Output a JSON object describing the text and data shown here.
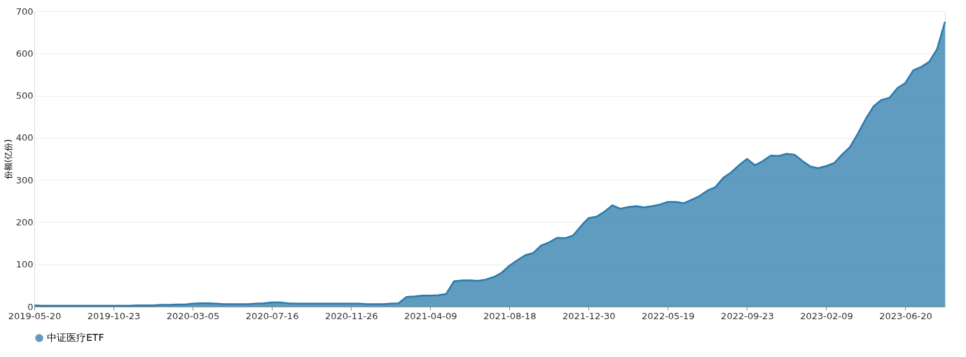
{
  "chart_data": {
    "type": "area",
    "ylabel": "份额(亿份)",
    "categories": [
      "2019-05-20",
      null,
      null,
      null,
      null,
      null,
      null,
      null,
      null,
      null,
      "2019-10-23",
      null,
      null,
      null,
      null,
      null,
      null,
      null,
      null,
      null,
      "2020-03-05",
      null,
      null,
      null,
      null,
      null,
      null,
      null,
      null,
      null,
      "2020-07-16",
      null,
      null,
      null,
      null,
      null,
      null,
      null,
      null,
      null,
      "2020-11-26",
      null,
      null,
      null,
      null,
      null,
      null,
      null,
      null,
      null,
      "2021-04-09",
      null,
      null,
      null,
      null,
      null,
      null,
      null,
      null,
      null,
      "2021-08-18",
      null,
      null,
      null,
      null,
      null,
      null,
      null,
      null,
      null,
      "2021-12-30",
      null,
      null,
      null,
      null,
      null,
      null,
      null,
      null,
      null,
      "2022-05-19",
      null,
      null,
      null,
      null,
      null,
      null,
      null,
      null,
      null,
      "2022-09-23",
      null,
      null,
      null,
      null,
      null,
      null,
      null,
      null,
      null,
      "2023-02-09",
      null,
      null,
      null,
      null,
      null,
      null,
      null,
      null,
      null,
      "2023-06-20",
      null,
      null,
      null,
      null,
      null
    ],
    "series": [
      {
        "name": "中证医疗ETF",
        "color": "#2b7bab",
        "values": [
          3,
          2,
          2,
          2,
          2,
          2,
          2,
          2,
          2,
          2,
          2,
          2,
          2,
          3,
          3,
          3,
          4,
          4,
          5,
          5,
          7,
          8,
          8,
          7,
          6,
          6,
          6,
          6,
          7,
          8,
          10,
          10,
          8,
          7,
          7,
          7,
          7,
          7,
          7,
          7,
          7,
          7,
          6,
          6,
          6,
          7,
          8,
          23,
          24,
          26,
          26,
          27,
          30,
          60,
          62,
          62,
          61,
          64,
          70,
          80,
          97,
          110,
          122,
          127,
          145,
          152,
          163,
          162,
          168,
          190,
          210,
          213,
          225,
          240,
          232,
          236,
          238,
          235,
          238,
          242,
          248,
          248,
          245,
          253,
          262,
          275,
          283,
          305,
          318,
          335,
          350,
          335,
          345,
          358,
          357,
          362,
          360,
          345,
          332,
          328,
          333,
          340,
          360,
          378,
          410,
          445,
          475,
          490,
          495,
          518,
          530,
          560,
          568,
          580,
          610,
          675
        ]
      }
    ],
    "ylim": [
      0,
      700
    ],
    "yticks": [
      0,
      100,
      200,
      300,
      400,
      500,
      600,
      700
    ],
    "grid": "y",
    "legend": "bottom"
  }
}
